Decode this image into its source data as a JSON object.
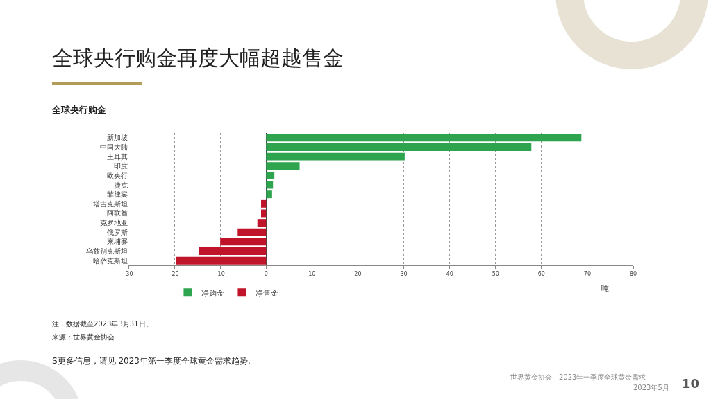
{
  "chart_data": {
    "type": "bar",
    "orientation": "horizontal",
    "title": "全球央行购金再度大幅超越售金",
    "subtitle": "全球央行购金",
    "xlabel": "吨",
    "categories": [
      "新加坡",
      "中国大陆",
      "土耳其",
      "印度",
      "欧央行",
      "捷克",
      "菲律宾",
      "塔吉克斯坦",
      "阿联酋",
      "克罗地亚",
      "俄罗斯",
      "柬埔寨",
      "乌兹别克斯坦",
      "哈萨克斯坦"
    ],
    "series": [
      {
        "name": "净购金",
        "color": "#2ea44f",
        "values": [
          68.7,
          57.8,
          30.2,
          7.3,
          1.8,
          1.5,
          1.3,
          null,
          null,
          null,
          null,
          null,
          null,
          null
        ]
      },
      {
        "name": "净售金",
        "color": "#c0142a",
        "values": [
          null,
          null,
          null,
          null,
          null,
          null,
          null,
          -1.1,
          -1.1,
          -1.9,
          -6.2,
          -10.0,
          -14.6,
          -19.6
        ]
      }
    ],
    "xlim": [
      -30,
      80
    ],
    "xticks": [
      -30,
      -20,
      -10,
      0,
      10,
      20,
      30,
      40,
      50,
      60,
      70,
      80
    ],
    "grid": "x",
    "legend": "bottom left",
    "annotations": [
      "注：数据截至2023年3月31日。",
      "来源：世界黄金协会",
      "S更多信息，请见 2023年第一季度全球黄金需求趋势.",
      "世界黄金协会 - 2023年一季度全球黄金需求",
      "2023年5月",
      "10"
    ]
  }
}
